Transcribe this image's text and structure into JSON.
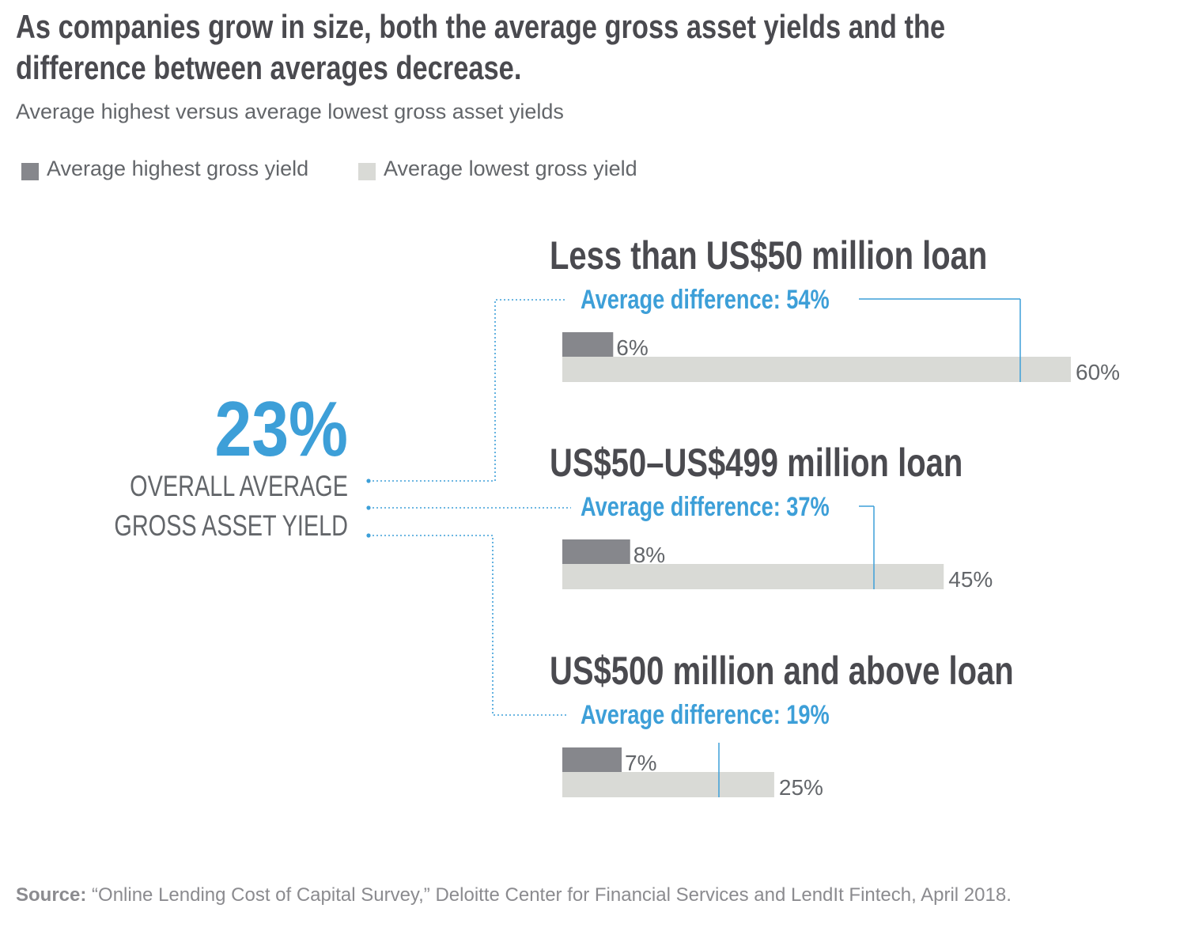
{
  "title": "As companies grow in size, both the average gross asset yields and the difference between averages decrease.",
  "subtitle": "Average highest versus average lowest gross asset yields",
  "colors": {
    "title": "#4a4a4f",
    "highest": "#86878c",
    "lowest": "#d9dad6",
    "accent": "#3d9fd8",
    "text": "#63666a",
    "source": "#8b8b8f"
  },
  "overall": {
    "value": "23%",
    "label_line1": "OVERALL AVERAGE",
    "label_line2": "GROSS ASSET YIELD"
  },
  "source": {
    "label": "Source:",
    "text": "“Online Lending Cost of Capital Survey,” Deloitte Center for Financial Services and LendIt Fintech, April 2018."
  },
  "chart_data": {
    "type": "bar",
    "orientation": "horizontal",
    "legend_position": "top-left",
    "grid": false,
    "xlim": [
      0,
      60
    ],
    "series": [
      {
        "name": "Average highest gross yield",
        "values": [
          6,
          8,
          7
        ]
      },
      {
        "name": "Average lowest gross yield",
        "values": [
          60,
          45,
          25
        ]
      }
    ],
    "categories": [
      "Less than US$50 million loan",
      "US$50–US$499 million loan",
      "US$500 million and above loan"
    ],
    "value_labels": [
      [
        "6%",
        "8%",
        "7%"
      ],
      [
        "60%",
        "45%",
        "25%"
      ]
    ],
    "annotations": [
      "Average difference: 54%",
      "Average difference: 37%",
      "Average difference: 19%"
    ],
    "difference_values": [
      54,
      37,
      19
    ]
  }
}
